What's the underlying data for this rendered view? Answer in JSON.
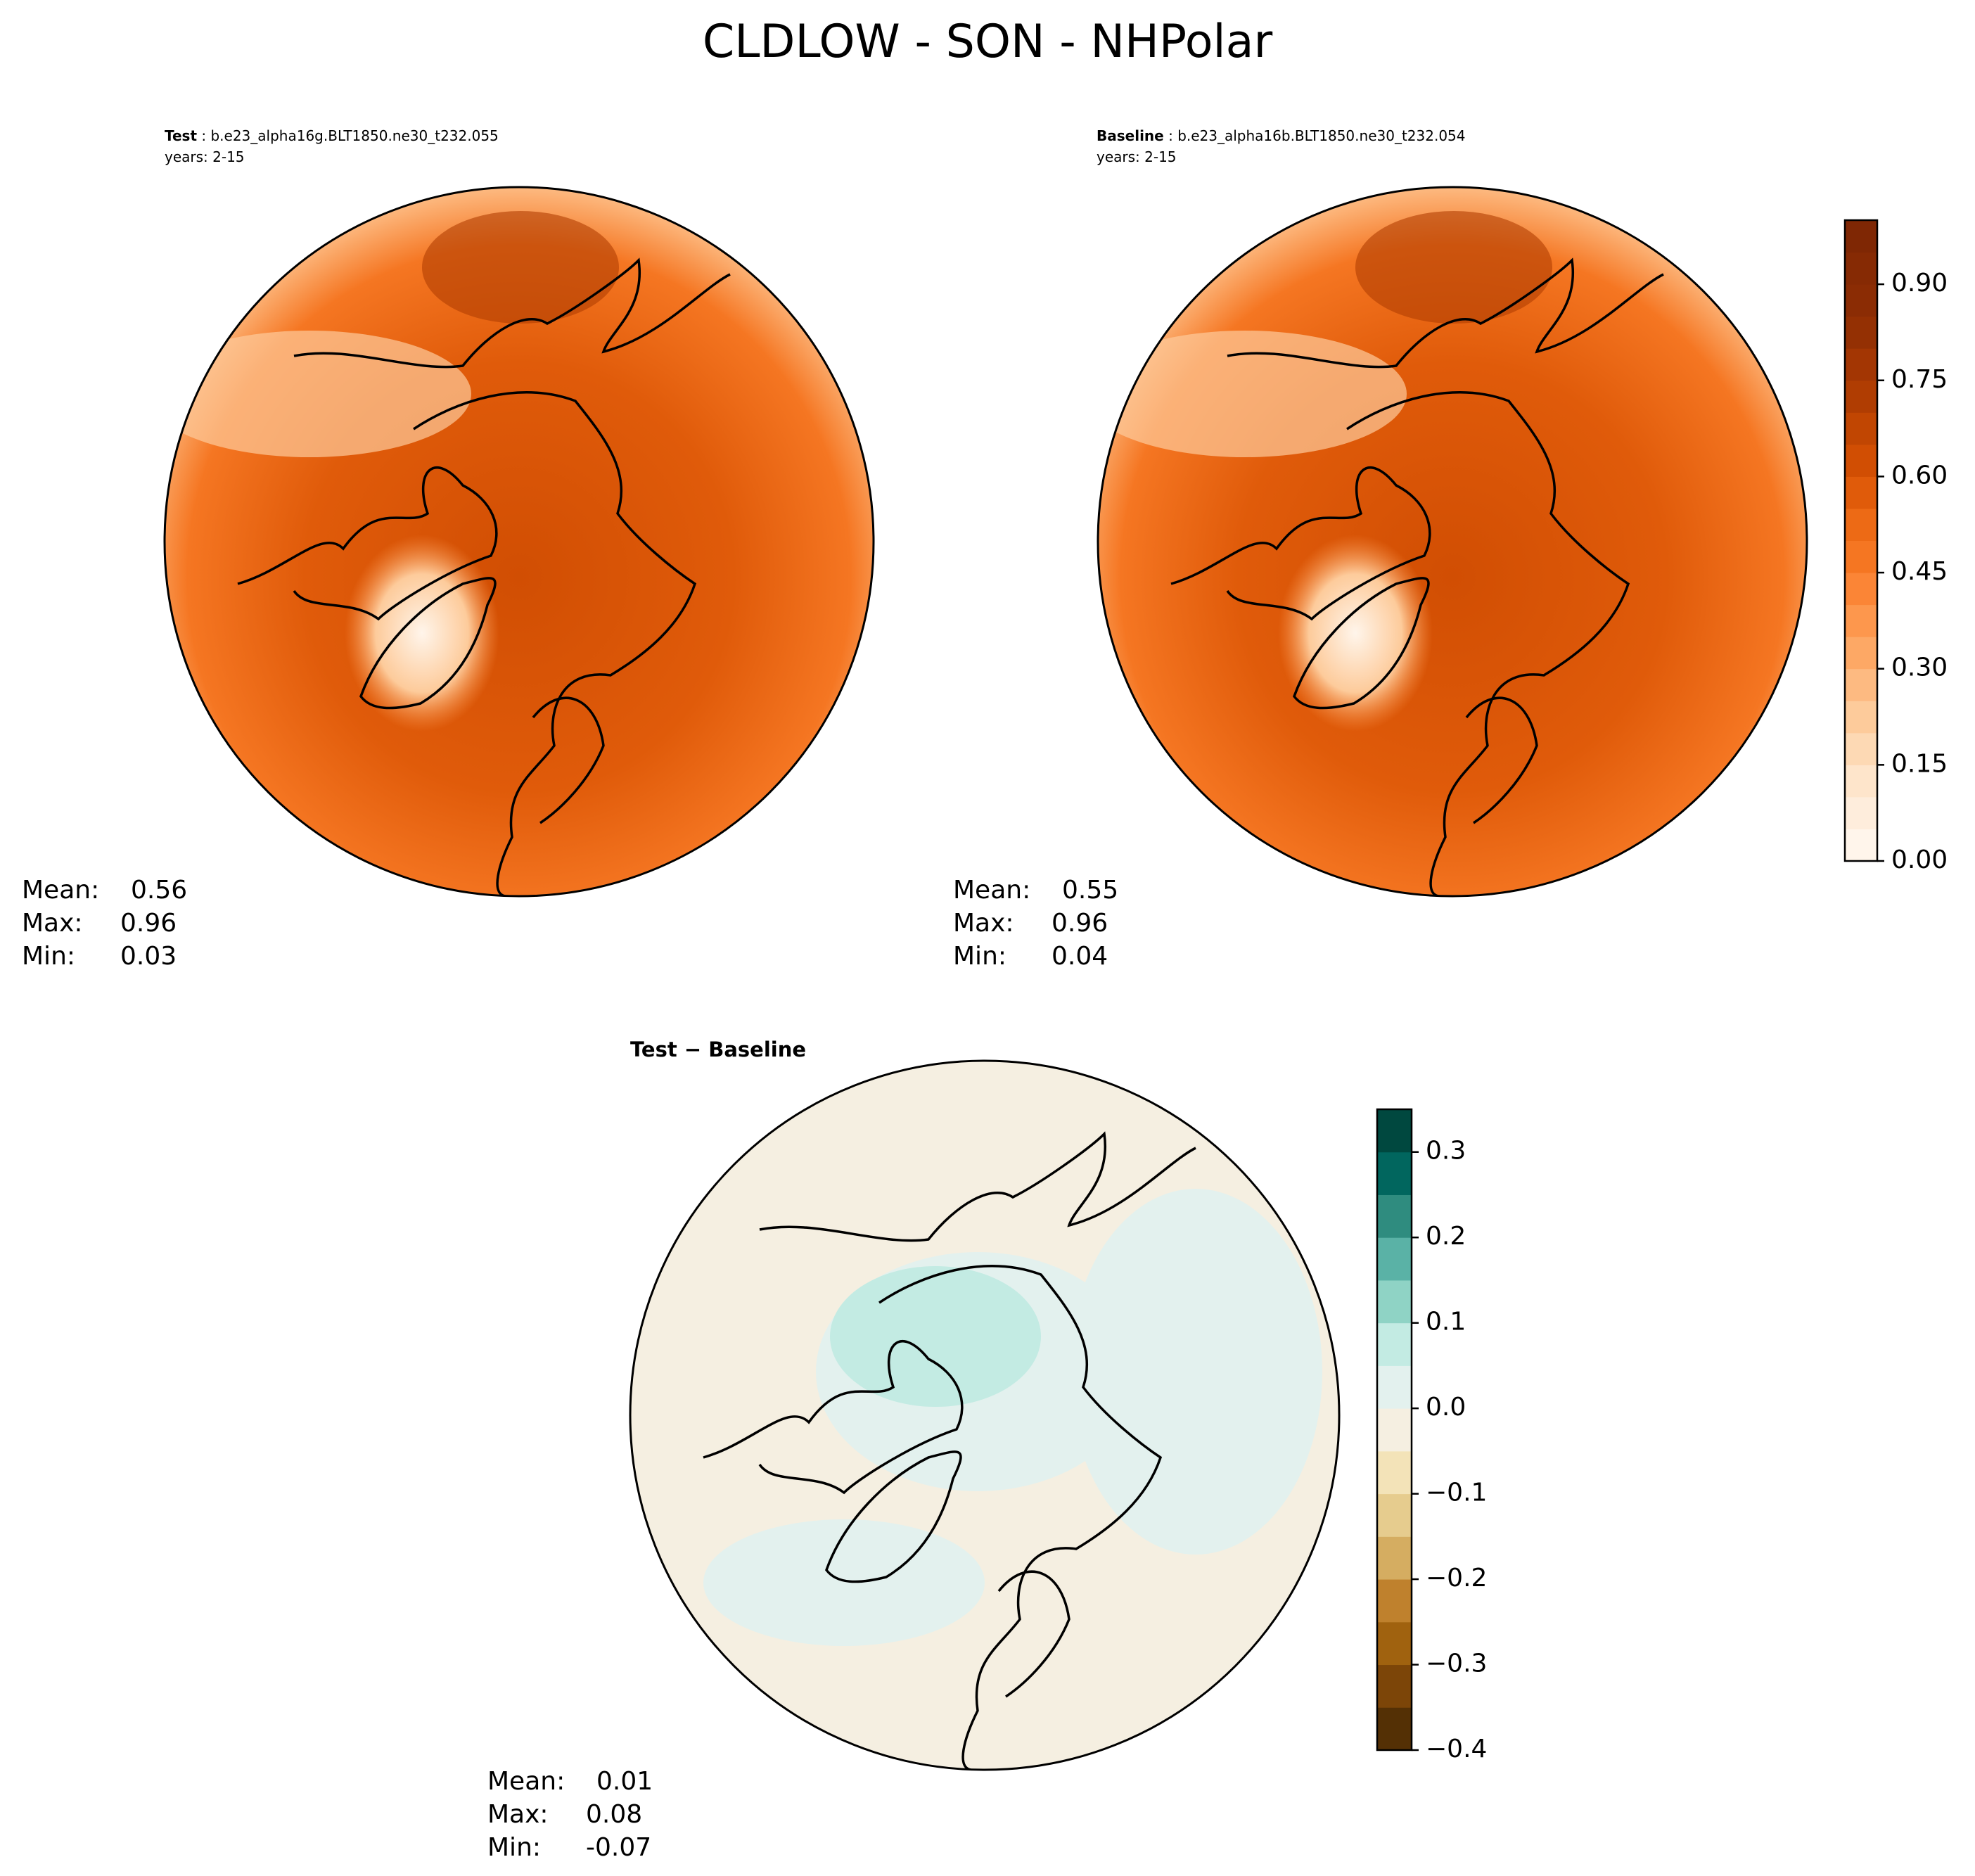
{
  "title": "CLDLOW - SON - NHPolar",
  "stat_labels": [
    "Mean:",
    "Max:",
    "Min:"
  ],
  "panels": [
    {
      "title_parts": [
        "Test",
        " : b.e23_alpha16g.BLT1850.ne30_t232.055"
      ],
      "years": "years: 2-15",
      "stats": {
        "mean": 0.56,
        "max": 0.96,
        "min": 0.03
      }
    },
    {
      "title_parts": [
        "Baseline",
        " : b.e23_alpha16b.BLT1850.ne30_t232.054"
      ],
      "years": "years: 2-15",
      "stats": {
        "mean": 0.55,
        "max": 0.96,
        "min": 0.04
      }
    },
    {
      "title": "Test − Baseline",
      "stats": {
        "mean": 0.01,
        "max": 0.08,
        "min": -0.07
      }
    }
  ],
  "colorbars": [
    {
      "lim": [
        0,
        1.0
      ],
      "ticks": [
        {
          "value": 0,
          "label": "0.00"
        },
        0.15,
        {
          "value": 0.3,
          "label": "0.30"
        },
        0.45,
        {
          "value": 0.6,
          "label": "0.60"
        },
        0.75,
        {
          "value": 0.9,
          "label": "0.90"
        }
      ],
      "colors": [
        "#fff5eb",
        "#feeddc",
        "#fee5cb",
        "#fdd9b4",
        "#fdcb9b",
        "#fdba81",
        "#fda865",
        "#fd974d",
        "#fb8536",
        "#f57622",
        "#ed6a15",
        "#e05b0a",
        "#d14e03",
        "#c14602",
        "#b03d02",
        "#a33603",
        "#943003",
        "#8b2c04",
        "#862a04",
        "#7f2704"
      ]
    },
    {
      "lim": [
        -0.4,
        0.35
      ],
      "ticks": [
        {
          "value": -0.4,
          "label": "−0.4"
        },
        {
          "value": -0.3,
          "label": "−0.3"
        },
        {
          "value": -0.2,
          "label": "−0.2"
        },
        {
          "value": -0.1,
          "label": "−0.1"
        },
        {
          "value": 0,
          "label": "0.0"
        },
        0.1,
        0.2,
        0.3
      ],
      "colors": [
        "#543005",
        "#7c4508",
        "#a0620f",
        "#bf812d",
        "#d5ad61",
        "#e6cc8e",
        "#f3e3b8",
        "#f5efe1",
        "#e3f1ee",
        "#c3ebe3",
        "#8fd3c5",
        "#5ab2a6",
        "#2f8c7f",
        "#01665e",
        "#00483f"
      ]
    }
  ]
}
